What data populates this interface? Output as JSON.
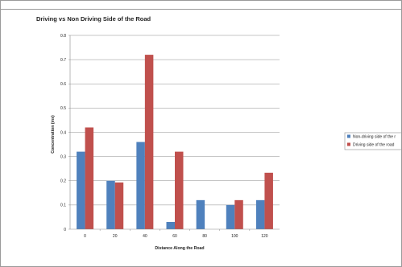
{
  "chart_data": {
    "type": "bar",
    "title": "Driving vs Non Driving Side of the Road",
    "xlabel": "Distance Along the Road",
    "ylabel": "Concentration (ms)",
    "categories": [
      "0",
      "20",
      "40",
      "60",
      "80",
      "100",
      "120"
    ],
    "ylim": [
      0,
      0.8
    ],
    "yticks": [
      "0",
      "0.1",
      "0.2",
      "0.3",
      "0.4",
      "0.5",
      "0.6",
      "0.7",
      "0.8"
    ],
    "grid": true,
    "legend_position": "right",
    "series": [
      {
        "name": "Non-driving side of the r",
        "color": "#4f81bd",
        "values": [
          0.32,
          0.2,
          0.36,
          0.03,
          0.12,
          0.1,
          0.12
        ]
      },
      {
        "name": "Driving side of the road",
        "color": "#c0504d",
        "values": [
          0.42,
          0.193,
          0.72,
          0.32,
          null,
          0.12,
          0.233
        ]
      }
    ]
  }
}
